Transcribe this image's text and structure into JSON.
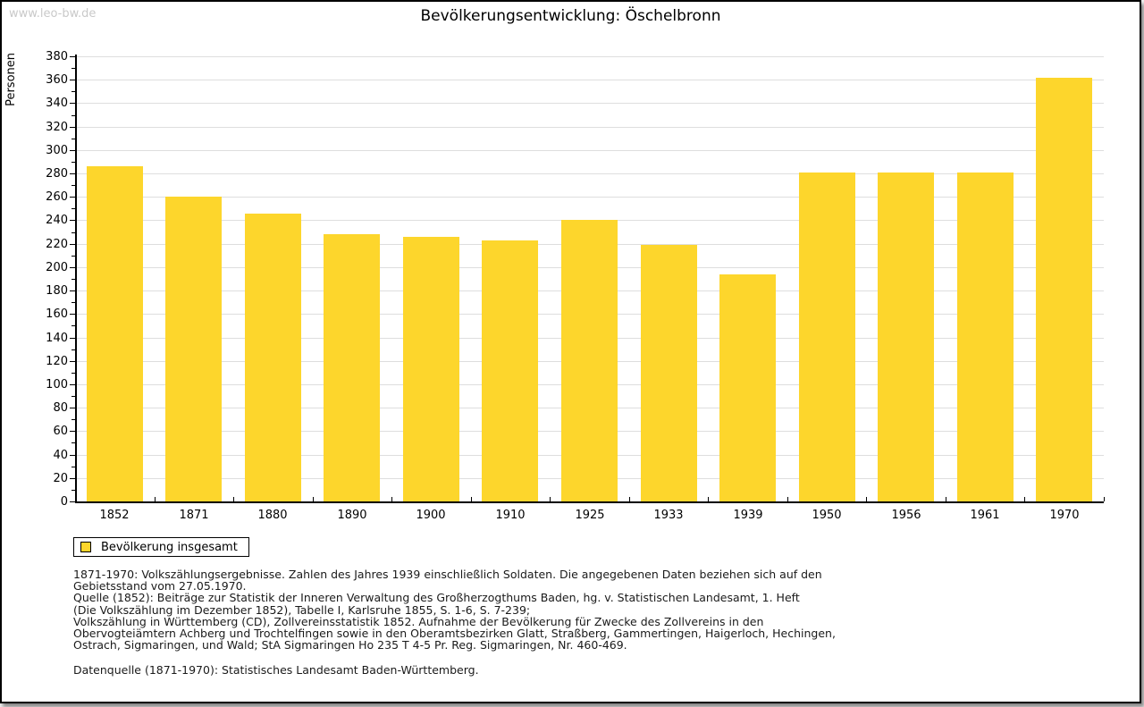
{
  "page": {
    "watermark": "www.leo-bw.de",
    "title": "Bevölkerungsentwicklung: Öschelbronn"
  },
  "chart_data": {
    "type": "bar",
    "title": "Bevölkerungsentwicklung: Öschelbronn",
    "xlabel": "",
    "ylabel": "Personen",
    "categories": [
      "1852",
      "1871",
      "1880",
      "1890",
      "1900",
      "1910",
      "1925",
      "1933",
      "1939",
      "1950",
      "1956",
      "1961",
      "1970"
    ],
    "values": [
      286,
      260,
      246,
      228,
      226,
      223,
      240,
      219,
      194,
      281,
      281,
      281,
      362
    ],
    "ylim": [
      0,
      380
    ],
    "ytick_step": 20,
    "minor_tick_step": 10,
    "grid": "horizontal-major",
    "bar_color": "#fdd62c",
    "gridline_color": "#dedede",
    "legend": {
      "label": "Bevölkerung insgesamt",
      "position": "bottom-left"
    }
  },
  "footnotes": {
    "lines": [
      "1871-1970: Volkszählungsergebnisse. Zahlen des Jahres 1939 einschließlich Soldaten. Die angegebenen Daten beziehen sich auf den",
      "Gebietsstand vom 27.05.1970.",
      "Quelle (1852): Beiträge zur Statistik der Inneren Verwaltung des Großherzogthums Baden, hg. v. Statistischen Landesamt, 1. Heft",
      "(Die Volkszählung im Dezember 1852), Tabelle I, Karlsruhe 1855, S. 1-6, S. 7-239;",
      "Volkszählung in Württemberg (CD), Zollvereinsstatistik 1852. Aufnahme der Bevölkerung für Zwecke des Zollvereins in den",
      "Obervogteiämtern Achberg und Trochtelfingen sowie in den Oberamtsbezirken Glatt, Straßberg, Gammertingen, Haigerloch, Hechingen,",
      "Ostrach, Sigmaringen, und Wald; StA Sigmaringen Ho 235 T 4-5 Pr. Reg. Sigmaringen, Nr. 460-469."
    ],
    "datasource": "Datenquelle (1871-1970): Statistisches Landesamt Baden-Württemberg."
  }
}
